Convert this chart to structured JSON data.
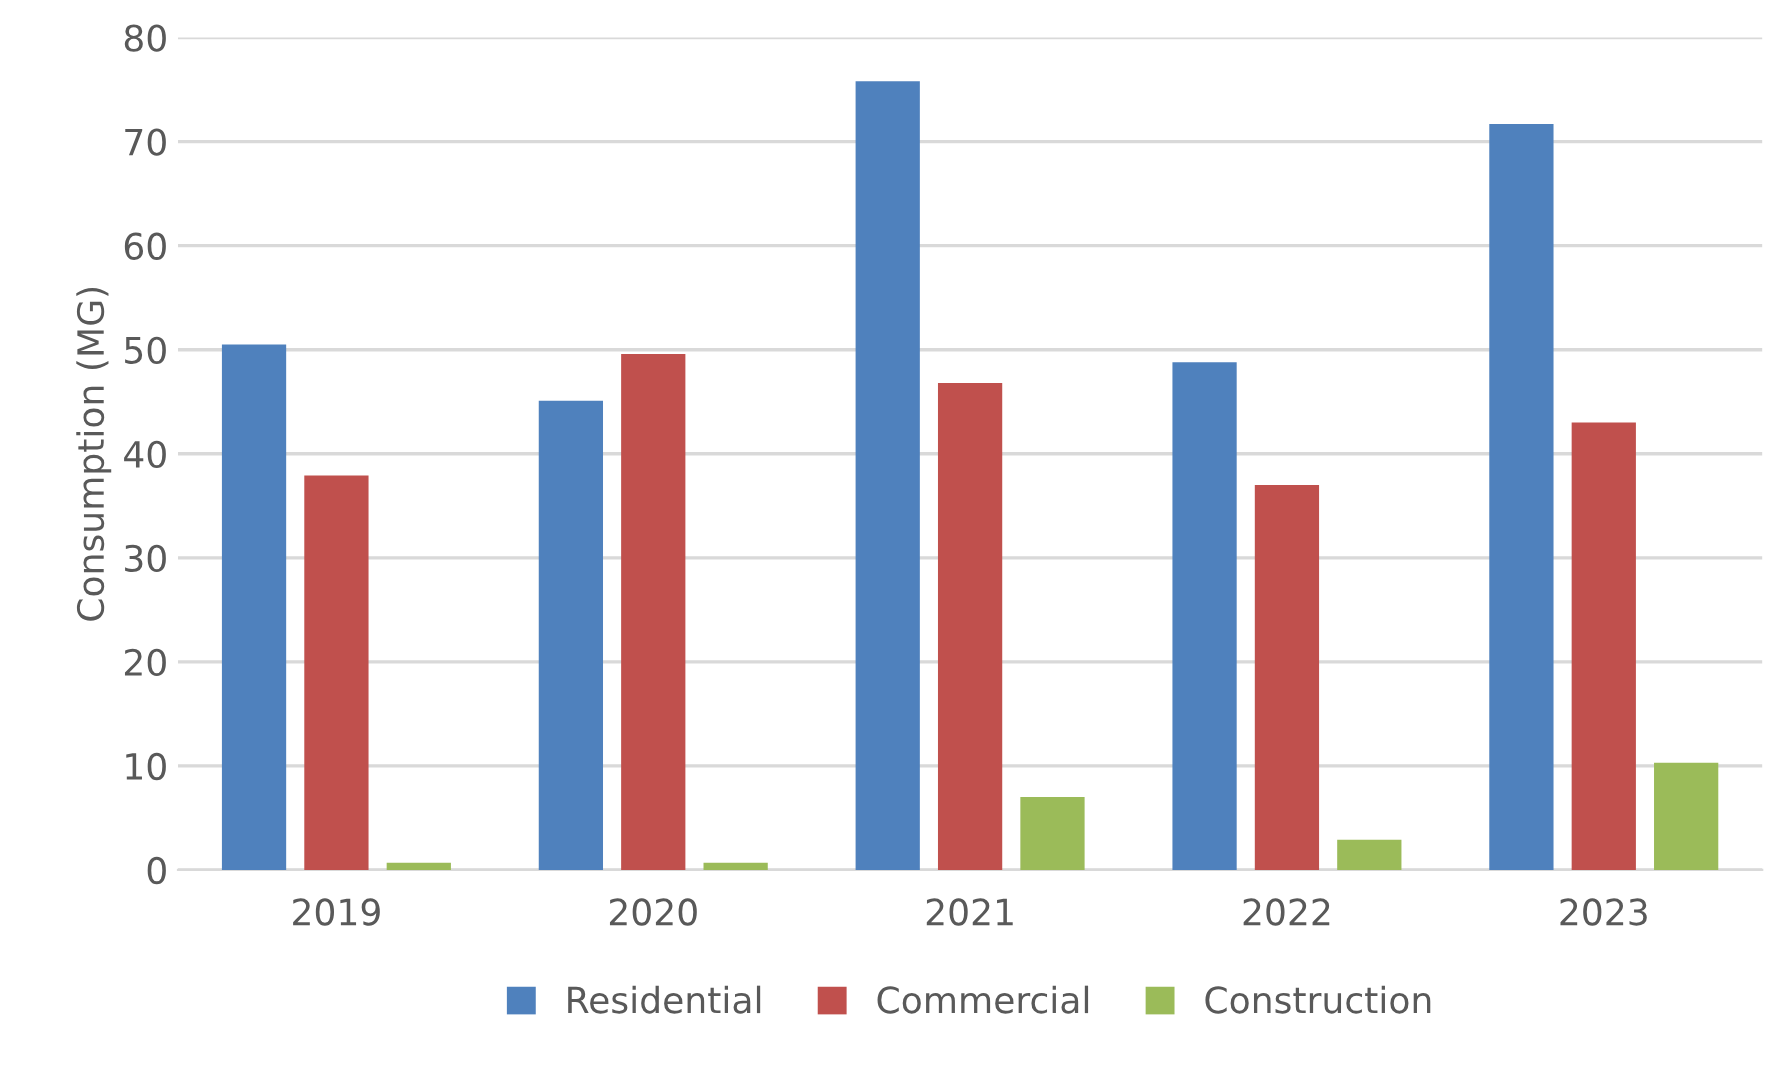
{
  "chart_data": {
    "type": "bar",
    "ylabel": "Consumption (MG)",
    "categories": [
      "2019",
      "2020",
      "2021",
      "2022",
      "2023"
    ],
    "series": [
      {
        "name": "Residential",
        "color": "#4f81bd",
        "values": [
          50.5,
          45.1,
          75.8,
          48.8,
          71.7
        ]
      },
      {
        "name": "Commercial",
        "color": "#c0504d",
        "values": [
          37.9,
          49.6,
          46.8,
          37.0,
          43.0
        ]
      },
      {
        "name": "Construction",
        "color": "#9bbb59",
        "values": [
          0.7,
          0.7,
          7.0,
          2.9,
          10.3
        ]
      }
    ],
    "ylim": [
      0,
      80
    ],
    "yticks": [
      0,
      10,
      20,
      30,
      40,
      50,
      60,
      70,
      80
    ],
    "grid": "y",
    "legend": "bottom"
  }
}
